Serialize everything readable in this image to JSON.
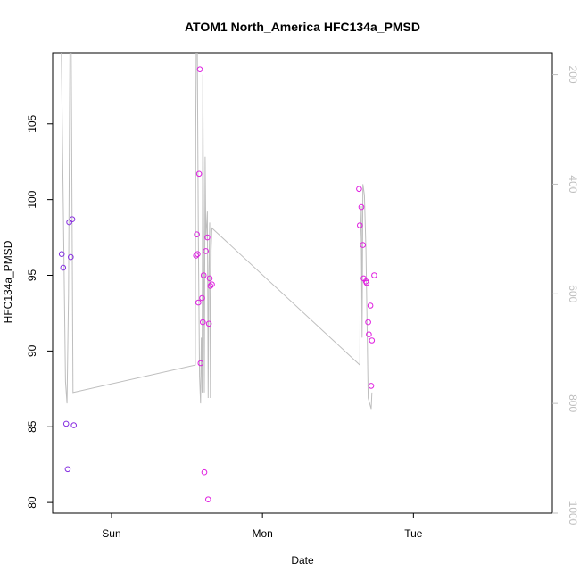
{
  "chart_data": {
    "type": "scatter",
    "title": "ATOM1 North_America HFC134a_PMSD",
    "xlabel": "Date",
    "ylabel": "HFC134a_PMSD",
    "x_ticks": [
      {
        "label": "Sun",
        "value": 0.0
      },
      {
        "label": "Mon",
        "value": 1.0
      },
      {
        "label": "Tue",
        "value": 2.0
      }
    ],
    "xlim": [
      -0.39,
      2.92
    ],
    "ylim": [
      79.3,
      109.7
    ],
    "y_ticks": [
      80,
      85,
      90,
      95,
      100,
      105
    ],
    "y_right_ticks": [
      200,
      400,
      600,
      800,
      1000
    ],
    "y_right_lim": [
      1000,
      160
    ],
    "grid": false,
    "colors": {
      "line": "#bebebe",
      "right_axis": "#bebebe",
      "points_early": "#7b2fe0",
      "points_late": "#e020e0"
    },
    "series": [
      {
        "points": [
          {
            "x": -0.33,
            "y": 96.4
          },
          {
            "x": -0.32,
            "y": 95.5
          },
          {
            "x": -0.3,
            "y": 85.2
          },
          {
            "x": -0.29,
            "y": 82.2
          },
          {
            "x": -0.28,
            "y": 98.5
          },
          {
            "x": -0.27,
            "y": 96.2
          },
          {
            "x": -0.26,
            "y": 98.7
          },
          {
            "x": -0.25,
            "y": 85.1
          },
          {
            "x": 0.56,
            "y": 96.3
          },
          {
            "x": 0.565,
            "y": 97.7
          },
          {
            "x": 0.57,
            "y": 96.4
          },
          {
            "x": 0.575,
            "y": 93.2
          },
          {
            "x": 0.58,
            "y": 101.7
          },
          {
            "x": 0.585,
            "y": 108.6
          },
          {
            "x": 0.59,
            "y": 89.2
          },
          {
            "x": 0.6,
            "y": 93.5
          },
          {
            "x": 0.605,
            "y": 91.9
          },
          {
            "x": 0.61,
            "y": 95.0
          },
          {
            "x": 0.615,
            "y": 82.0
          },
          {
            "x": 0.625,
            "y": 96.6
          },
          {
            "x": 0.635,
            "y": 97.5
          },
          {
            "x": 0.64,
            "y": 80.2
          },
          {
            "x": 0.645,
            "y": 91.8
          },
          {
            "x": 0.65,
            "y": 94.8
          },
          {
            "x": 0.655,
            "y": 94.3
          },
          {
            "x": 0.665,
            "y": 94.4
          },
          {
            "x": 1.64,
            "y": 100.7
          },
          {
            "x": 1.645,
            "y": 98.3
          },
          {
            "x": 1.655,
            "y": 99.5
          },
          {
            "x": 1.665,
            "y": 97.0
          },
          {
            "x": 1.67,
            "y": 94.8
          },
          {
            "x": 1.685,
            "y": 94.6
          },
          {
            "x": 1.69,
            "y": 94.5
          },
          {
            "x": 1.7,
            "y": 91.9
          },
          {
            "x": 1.705,
            "y": 91.1
          },
          {
            "x": 1.715,
            "y": 93.0
          },
          {
            "x": 1.72,
            "y": 87.7
          },
          {
            "x": 1.725,
            "y": 90.7
          },
          {
            "x": 1.74,
            "y": 95.0
          }
        ]
      },
      {
        "axis": "right",
        "points": [
          {
            "x": -0.335,
            "y": 100
          },
          {
            "x": -0.305,
            "y": 760
          },
          {
            "x": -0.295,
            "y": 800
          },
          {
            "x": -0.285,
            "y": 600
          },
          {
            "x": -0.275,
            "y": 120
          },
          {
            "x": -0.268,
            "y": 100
          },
          {
            "x": -0.255,
            "y": 780
          },
          {
            "x": 0.555,
            "y": 730
          },
          {
            "x": 0.558,
            "y": 300
          },
          {
            "x": 0.562,
            "y": 100
          },
          {
            "x": 0.568,
            "y": 150
          },
          {
            "x": 0.575,
            "y": 500
          },
          {
            "x": 0.583,
            "y": 750
          },
          {
            "x": 0.59,
            "y": 800
          },
          {
            "x": 0.595,
            "y": 680
          },
          {
            "x": 0.6,
            "y": 780
          },
          {
            "x": 0.605,
            "y": 200
          },
          {
            "x": 0.61,
            "y": 500
          },
          {
            "x": 0.615,
            "y": 780
          },
          {
            "x": 0.62,
            "y": 350
          },
          {
            "x": 0.625,
            "y": 500
          },
          {
            "x": 0.635,
            "y": 450
          },
          {
            "x": 0.64,
            "y": 790
          },
          {
            "x": 0.645,
            "y": 560
          },
          {
            "x": 0.65,
            "y": 470
          },
          {
            "x": 0.655,
            "y": 790
          },
          {
            "x": 0.66,
            "y": 520
          },
          {
            "x": 0.665,
            "y": 480
          },
          {
            "x": 1.645,
            "y": 730
          },
          {
            "x": 1.648,
            "y": 500
          },
          {
            "x": 1.655,
            "y": 440
          },
          {
            "x": 1.66,
            "y": 680
          },
          {
            "x": 1.665,
            "y": 400
          },
          {
            "x": 1.675,
            "y": 420
          },
          {
            "x": 1.685,
            "y": 520
          },
          {
            "x": 1.695,
            "y": 690
          },
          {
            "x": 1.7,
            "y": 790
          },
          {
            "x": 1.71,
            "y": 800
          },
          {
            "x": 1.72,
            "y": 810
          },
          {
            "x": 1.725,
            "y": 780
          }
        ]
      }
    ]
  }
}
